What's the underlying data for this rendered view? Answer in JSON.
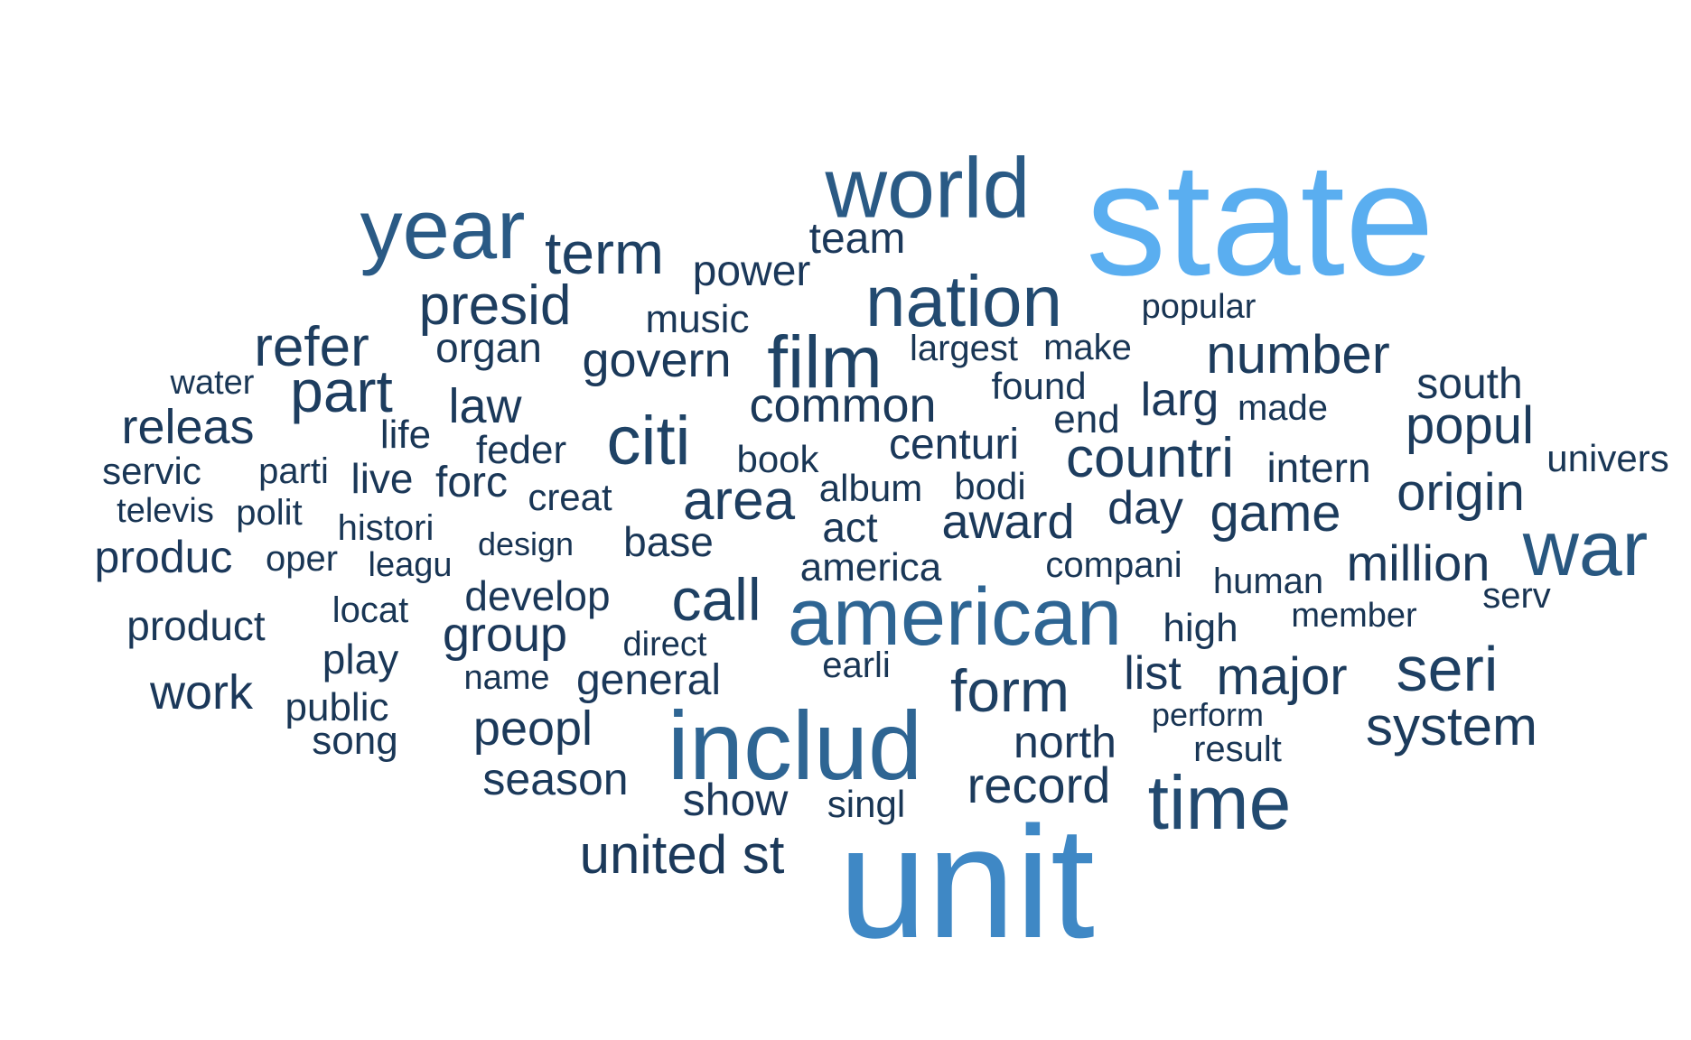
{
  "chart_data": {
    "type": "wordcloud",
    "words": [
      {
        "text": "state",
        "weight": 100,
        "color": "#5aaef0"
      },
      {
        "text": "unit",
        "weight": 92,
        "color": "#3f88c5"
      },
      {
        "text": "includ",
        "weight": 70,
        "color": "#2e6593"
      },
      {
        "text": "american",
        "weight": 62,
        "color": "#2e6593"
      },
      {
        "text": "world",
        "weight": 58,
        "color": "#2a5a85"
      },
      {
        "text": "year",
        "weight": 58,
        "color": "#2a5a85"
      },
      {
        "text": "war",
        "weight": 55,
        "color": "#285780"
      },
      {
        "text": "time",
        "weight": 54,
        "color": "#224a70"
      },
      {
        "text": "nation",
        "weight": 52,
        "color": "#224a70"
      },
      {
        "text": "film",
        "weight": 50,
        "color": "#1f4366"
      },
      {
        "text": "citi",
        "weight": 47,
        "color": "#1f4366"
      },
      {
        "text": "call",
        "weight": 44,
        "color": "#1e4063"
      },
      {
        "text": "term",
        "weight": 43,
        "color": "#1e4063"
      },
      {
        "text": "seri",
        "weight": 43,
        "color": "#1e4063"
      },
      {
        "text": "form",
        "weight": 42,
        "color": "#1e4063"
      },
      {
        "text": "countri",
        "weight": 40,
        "color": "#1d3d5f"
      },
      {
        "text": "part",
        "weight": 40,
        "color": "#1d3d5f"
      },
      {
        "text": "refer",
        "weight": 39,
        "color": "#1d3d5f"
      },
      {
        "text": "presid",
        "weight": 38,
        "color": "#1d3d5f"
      },
      {
        "text": "area",
        "weight": 38,
        "color": "#1d3d5f"
      },
      {
        "text": "number",
        "weight": 37,
        "color": "#1c3b5c"
      },
      {
        "text": "system",
        "weight": 37,
        "color": "#1c3b5c"
      },
      {
        "text": "record",
        "weight": 36,
        "color": "#1c3b5c"
      },
      {
        "text": "game",
        "weight": 35,
        "color": "#1c3b5c"
      },
      {
        "text": "major",
        "weight": 35,
        "color": "#1c3b5c"
      },
      {
        "text": "origin",
        "weight": 35,
        "color": "#1c3b5c"
      },
      {
        "text": "popul",
        "weight": 34,
        "color": "#1c3b5c"
      },
      {
        "text": "releas",
        "weight": 34,
        "color": "#1b395a"
      },
      {
        "text": "common",
        "weight": 33,
        "color": "#1b395a"
      },
      {
        "text": "govern",
        "weight": 33,
        "color": "#1b395a"
      },
      {
        "text": "award",
        "weight": 33,
        "color": "#1b395a"
      },
      {
        "text": "million",
        "weight": 33,
        "color": "#1b395a"
      },
      {
        "text": "peopl",
        "weight": 32,
        "color": "#1b395a"
      },
      {
        "text": "season",
        "weight": 32,
        "color": "#1b395a"
      },
      {
        "text": "united st",
        "weight": 32,
        "color": "#1b395a"
      },
      {
        "text": "law",
        "weight": 32,
        "color": "#1b395a"
      },
      {
        "text": "larg",
        "weight": 31,
        "color": "#1b385a"
      },
      {
        "text": "north",
        "weight": 31,
        "color": "#1b385a"
      },
      {
        "text": "list",
        "weight": 31,
        "color": "#1b385a"
      },
      {
        "text": "group",
        "weight": 31,
        "color": "#1b385a"
      },
      {
        "text": "work",
        "weight": 31,
        "color": "#1b385a"
      },
      {
        "text": "show",
        "weight": 31,
        "color": "#1b385a"
      },
      {
        "text": "day",
        "weight": 30,
        "color": "#1b385a"
      },
      {
        "text": "power",
        "weight": 30,
        "color": "#1b385a"
      },
      {
        "text": "team",
        "weight": 30,
        "color": "#1b385a"
      },
      {
        "text": "centuri",
        "weight": 30,
        "color": "#1b385a"
      },
      {
        "text": "produc",
        "weight": 30,
        "color": "#1b385a"
      },
      {
        "text": "general",
        "weight": 30,
        "color": "#1b385a"
      },
      {
        "text": "south",
        "weight": 29,
        "color": "#1a3757"
      },
      {
        "text": "organ",
        "weight": 29,
        "color": "#1a3757"
      },
      {
        "text": "forc",
        "weight": 29,
        "color": "#1a3757"
      },
      {
        "text": "develop",
        "weight": 29,
        "color": "#1a3757"
      },
      {
        "text": "base",
        "weight": 29,
        "color": "#1a3757"
      },
      {
        "text": "product",
        "weight": 29,
        "color": "#1a3757"
      },
      {
        "text": "end",
        "weight": 29,
        "color": "#1a3757"
      },
      {
        "text": "play",
        "weight": 29,
        "color": "#1a3757"
      },
      {
        "text": "act",
        "weight": 28,
        "color": "#1a3757"
      },
      {
        "text": "music",
        "weight": 28,
        "color": "#1a3757"
      },
      {
        "text": "intern",
        "weight": 28,
        "color": "#1a3757"
      },
      {
        "text": "live",
        "weight": 28,
        "color": "#1a3757"
      },
      {
        "text": "feder",
        "weight": 28,
        "color": "#1a3757"
      },
      {
        "text": "america",
        "weight": 28,
        "color": "#1a3757"
      },
      {
        "text": "high",
        "weight": 28,
        "color": "#1a3757"
      },
      {
        "text": "found",
        "weight": 28,
        "color": "#1a3757"
      },
      {
        "text": "song",
        "weight": 28,
        "color": "#1a3757"
      },
      {
        "text": "public",
        "weight": 27,
        "color": "#193655"
      },
      {
        "text": "book",
        "weight": 27,
        "color": "#193655"
      },
      {
        "text": "made",
        "weight": 27,
        "color": "#193655"
      },
      {
        "text": "make",
        "weight": 27,
        "color": "#193655"
      },
      {
        "text": "largest",
        "weight": 27,
        "color": "#193655"
      },
      {
        "text": "servic",
        "weight": 27,
        "color": "#193655"
      },
      {
        "text": "creat",
        "weight": 27,
        "color": "#193655"
      },
      {
        "text": "album",
        "weight": 27,
        "color": "#193655"
      },
      {
        "text": "bodi",
        "weight": 27,
        "color": "#193655"
      },
      {
        "text": "life",
        "weight": 27,
        "color": "#193655"
      },
      {
        "text": "singl",
        "weight": 26,
        "color": "#193655"
      },
      {
        "text": "locat",
        "weight": 26,
        "color": "#193655"
      },
      {
        "text": "univers",
        "weight": 26,
        "color": "#193655"
      },
      {
        "text": "compani",
        "weight": 26,
        "color": "#193655"
      },
      {
        "text": "earli",
        "weight": 26,
        "color": "#193655"
      },
      {
        "text": "histori",
        "weight": 26,
        "color": "#193655"
      },
      {
        "text": "human",
        "weight": 26,
        "color": "#193655"
      },
      {
        "text": "oper",
        "weight": 26,
        "color": "#193655"
      },
      {
        "text": "result",
        "weight": 26,
        "color": "#193655"
      },
      {
        "text": "polit",
        "weight": 26,
        "color": "#193655"
      },
      {
        "text": "parti",
        "weight": 26,
        "color": "#193655"
      },
      {
        "text": "water",
        "weight": 26,
        "color": "#193655"
      },
      {
        "text": "direct",
        "weight": 25,
        "color": "#183453"
      },
      {
        "text": "serv",
        "weight": 25,
        "color": "#183453"
      },
      {
        "text": "name",
        "weight": 25,
        "color": "#183453"
      },
      {
        "text": "popular",
        "weight": 25,
        "color": "#183453"
      },
      {
        "text": "leagu",
        "weight": 25,
        "color": "#183453"
      },
      {
        "text": "member",
        "weight": 25,
        "color": "#183453"
      },
      {
        "text": "perform",
        "weight": 25,
        "color": "#183453"
      },
      {
        "text": "design",
        "weight": 25,
        "color": "#183453"
      },
      {
        "text": "televis",
        "weight": 25,
        "color": "#183453"
      }
    ]
  }
}
